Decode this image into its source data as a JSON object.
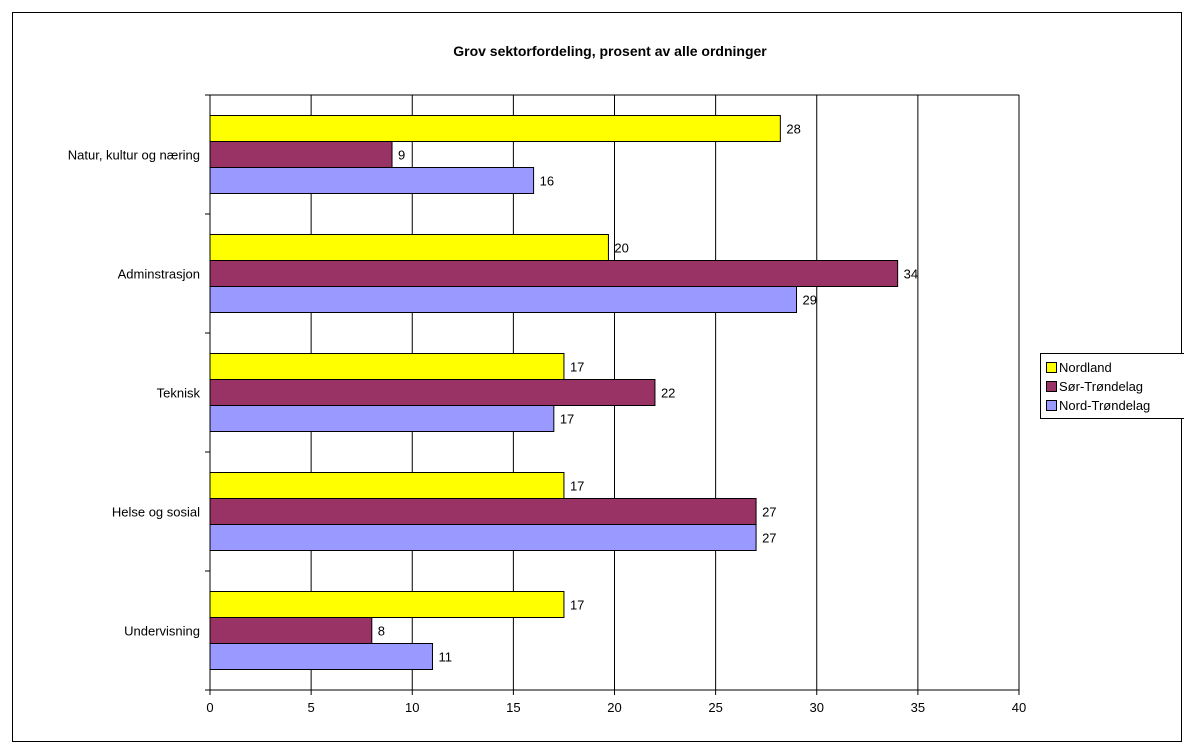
{
  "chart_data": {
    "type": "bar",
    "orientation": "horizontal",
    "title": "Grov sektorfordeling, prosent av alle ordninger",
    "xlabel": "",
    "ylabel": "",
    "categories": [
      "Natur, kultur og næring",
      "Adminstrasjon",
      "Teknisk",
      "Helse og sosial",
      "Undervisning"
    ],
    "series": [
      {
        "name": "Nordland",
        "color": "#FFFF00",
        "values": [
          28.2,
          19.7,
          17.5,
          17.5,
          17.5
        ],
        "labels": [
          "28",
          "20",
          "17",
          "17",
          "17"
        ]
      },
      {
        "name": "Sør-Trøndelag",
        "color": "#993366",
        "values": [
          9,
          34,
          22,
          27,
          8
        ],
        "labels": [
          "9",
          "34",
          "22",
          "27",
          "8"
        ]
      },
      {
        "name": "Nord-Trøndelag",
        "color": "#9999FF",
        "values": [
          16,
          29,
          17,
          27,
          11
        ],
        "labels": [
          "16",
          "29",
          "17",
          "27",
          "11"
        ]
      }
    ],
    "xlim": [
      0,
      40
    ],
    "xticks": [
      "0",
      "5",
      "10",
      "15",
      "20",
      "25",
      "30",
      "35",
      "40"
    ],
    "grid": "vertical",
    "legend_position": "right"
  }
}
